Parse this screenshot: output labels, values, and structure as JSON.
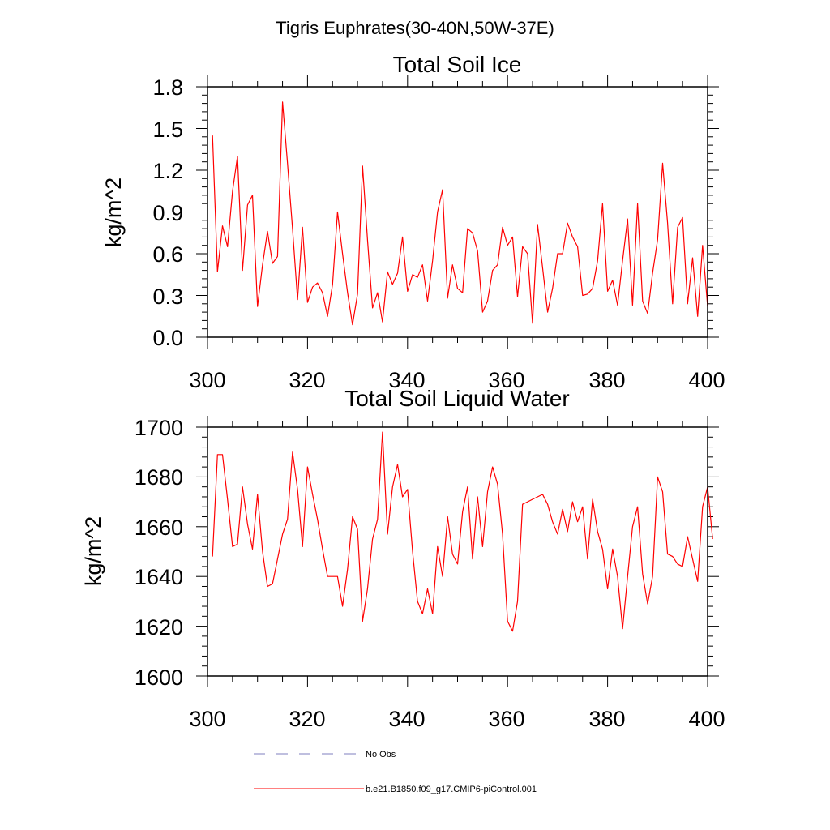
{
  "main_title": "Tigris Euphrates(30-40N,50W-37E)",
  "chart_data": [
    {
      "type": "line",
      "title": "Total Soil Ice",
      "xlabel": "",
      "ylabel": "kg/m^2",
      "xlim": [
        300,
        400
      ],
      "ylim": [
        0.0,
        1.8
      ],
      "xticks": [
        300,
        320,
        340,
        360,
        380,
        400
      ],
      "xtick_labels": [
        "300",
        "320",
        "340",
        "360",
        "380",
        "400"
      ],
      "yticks": [
        0.0,
        0.3,
        0.6,
        0.9,
        1.2,
        1.5,
        1.8
      ],
      "ytick_labels": [
        "0.0",
        "0.3",
        "0.6",
        "0.9",
        "1.2",
        "1.5",
        "1.8"
      ],
      "series": [
        {
          "name": "b.e21.B1850.f09_g17.CMIP6-piControl.001",
          "color": "#ff0000",
          "x_start": 301,
          "x_step": 1,
          "values": [
            1.45,
            0.47,
            0.8,
            0.65,
            1.05,
            1.3,
            0.48,
            0.95,
            1.02,
            0.22,
            0.52,
            0.76,
            0.53,
            0.58,
            1.69,
            1.25,
            0.78,
            0.27,
            0.79,
            0.25,
            0.36,
            0.39,
            0.32,
            0.15,
            0.38,
            0.9,
            0.6,
            0.32,
            0.09,
            0.31,
            1.23,
            0.7,
            0.21,
            0.32,
            0.11,
            0.47,
            0.38,
            0.46,
            0.72,
            0.33,
            0.45,
            0.43,
            0.52,
            0.26,
            0.55,
            0.9,
            1.06,
            0.28,
            0.52,
            0.35,
            0.32,
            0.78,
            0.75,
            0.62,
            0.18,
            0.26,
            0.48,
            0.52,
            0.79,
            0.66,
            0.72,
            0.29,
            0.65,
            0.6,
            0.1,
            0.81,
            0.5,
            0.18,
            0.35,
            0.6,
            0.6,
            0.82,
            0.72,
            0.65,
            0.3,
            0.31,
            0.35,
            0.55,
            0.96,
            0.33,
            0.41,
            0.23,
            0.55,
            0.85,
            0.23,
            0.96,
            0.26,
            0.17,
            0.46,
            0.7,
            1.25,
            0.82,
            0.24,
            0.79,
            0.86,
            0.24,
            0.57,
            0.15,
            0.66,
            0.22
          ]
        }
      ]
    },
    {
      "type": "line",
      "title": "Total Soil Liquid Water",
      "xlabel": "",
      "ylabel": "kg/m^2",
      "xlim": [
        300,
        400
      ],
      "ylim": [
        1600,
        1700
      ],
      "xticks": [
        300,
        320,
        340,
        360,
        380,
        400
      ],
      "xtick_labels": [
        "300",
        "320",
        "340",
        "360",
        "380",
        "400"
      ],
      "yticks": [
        1600,
        1620,
        1640,
        1660,
        1680,
        1700
      ],
      "ytick_labels": [
        "1600",
        "1620",
        "1640",
        "1660",
        "1680",
        "1700"
      ],
      "series": [
        {
          "name": "b.e21.B1850.f09_g17.CMIP6-piControl.001",
          "color": "#ff0000",
          "x_start": 301,
          "x_step": 1,
          "values": [
            1648,
            1689,
            1689,
            1671,
            1652,
            1653,
            1676,
            1661,
            1651,
            1673,
            1650,
            1636,
            1637,
            1647,
            1657,
            1663,
            1690,
            1675,
            1652,
            1684,
            1673,
            1663,
            1651,
            1640,
            1640,
            1640,
            1628,
            1643,
            1664,
            1659,
            1622,
            1635,
            1655,
            1663,
            1698,
            1657,
            1676,
            1685,
            1672,
            1675,
            1650,
            1630,
            1625,
            1635,
            1625,
            1652,
            1640,
            1664,
            1649,
            1645,
            1666,
            1676,
            1647,
            1672,
            1652,
            1674,
            1684,
            1677,
            1657,
            1622,
            1618,
            1630,
            1669,
            1670,
            1671,
            1672,
            1673,
            1669,
            1662,
            1657,
            1667,
            1658,
            1670,
            1662,
            1668,
            1647,
            1671,
            1658,
            1651,
            1635,
            1651,
            1640,
            1619,
            1640,
            1660,
            1668,
            1641,
            1629,
            1640,
            1680,
            1674,
            1649,
            1648,
            1645,
            1644,
            1656,
            1647,
            1638,
            1668,
            1676,
            1655
          ]
        }
      ]
    }
  ],
  "legend": {
    "entries": [
      {
        "label": "No Obs",
        "color": "#7f7fbf",
        "style": "dashed"
      },
      {
        "label": "b.e21.B1850.f09_g17.CMIP6-piControl.001",
        "color": "#ff0000",
        "style": "solid"
      }
    ]
  }
}
